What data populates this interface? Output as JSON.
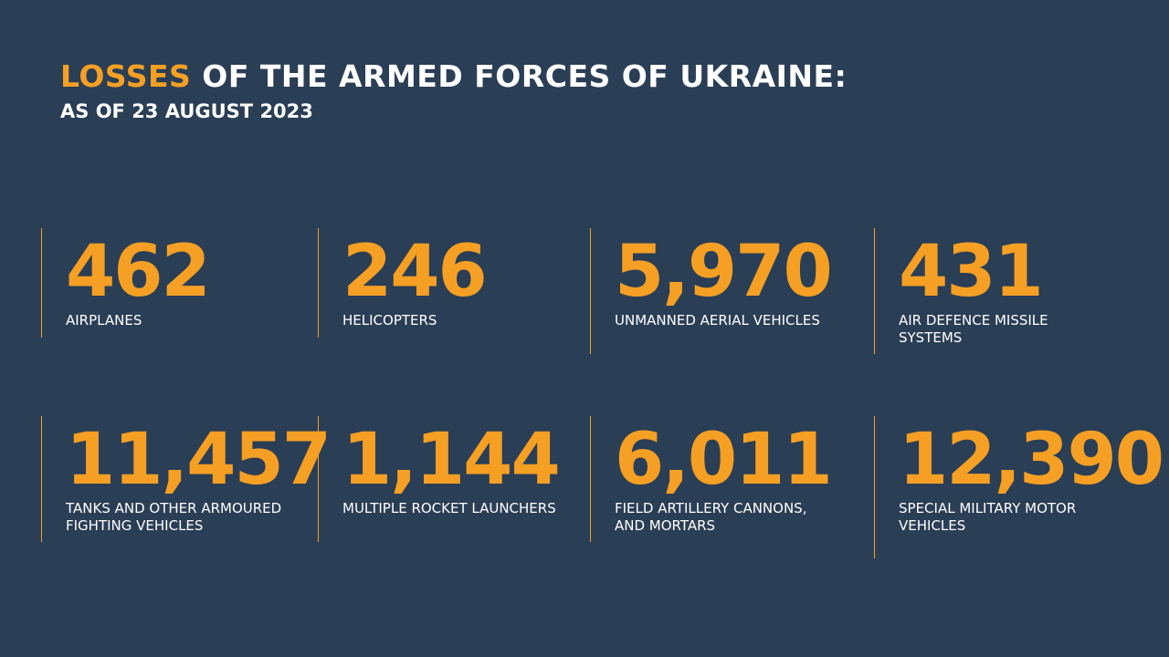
{
  "header": {
    "title_accent": "LOSSES",
    "title_rest": " OF THE ARMED FORCES OF UKRAINE:",
    "subtitle": "AS OF 23 AUGUST 2023"
  },
  "colors": {
    "background": "#2a3e55",
    "accent": "#f5a024",
    "text": "#ffffff"
  },
  "stats": [
    {
      "value": "462",
      "label_line1": "AIRPLANES",
      "label_line2": ""
    },
    {
      "value": "246",
      "label_line1": "HELICOPTERS",
      "label_line2": ""
    },
    {
      "value": "5,970",
      "label_line1": "UNMANNED AERIAL VEHICLES",
      "label_line2": ""
    },
    {
      "value": "431",
      "label_line1": "AIR DEFENCE MISSILE",
      "label_line2": "SYSTEMS"
    },
    {
      "value": "11,457",
      "label_line1": "TANKS AND OTHER ARMOURED",
      "label_line2": "FIGHTING VEHICLES"
    },
    {
      "value": "1,144",
      "label_line1": "MULTIPLE ROCKET LAUNCHERS",
      "label_line2": ""
    },
    {
      "value": "6,011",
      "label_line1": "FIELD ARTILLERY CANNONS,",
      "label_line2": "AND MORTARS"
    },
    {
      "value": "12,390",
      "label_line1": "SPECIAL MILITARY MOTOR",
      "label_line2": "VEHICLES"
    }
  ]
}
